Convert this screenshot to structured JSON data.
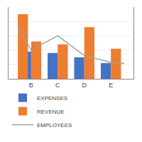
{
  "chart_data": {
    "type": "bar",
    "xlim": [
      -0.85,
      3.85
    ],
    "xticks": [
      {
        "value": 0,
        "label": "B"
      },
      {
        "value": 1,
        "label": "C"
      },
      {
        "value": 2,
        "label": "D"
      },
      {
        "value": 3,
        "label": "E"
      }
    ],
    "ylim": [
      0,
      100
    ],
    "yticks": [
      0,
      20,
      40,
      60,
      80,
      100
    ],
    "y2lim": [
      0,
      130
    ],
    "grid": true,
    "tick_labels": "x",
    "legend": "bottom",
    "series": [
      {
        "name": "EXPENSES",
        "type": "bar",
        "color": "#4472C4",
        "x": [
          0,
          1,
          2,
          3
        ],
        "values": [
          38,
          36,
          30,
          22
        ]
      },
      {
        "name": "REVENUE",
        "type": "bar",
        "color": "#ED7D31",
        "x": [
          -0.5,
          0,
          1,
          2,
          3
        ],
        "values": [
          90,
          52,
          48,
          72,
          42
        ]
      },
      {
        "name": "EMPLOYEES",
        "type": "line",
        "color": "#A0A0A0",
        "axis": "y2",
        "x": [
          -0.5,
          0,
          1,
          2,
          3,
          3.5
        ],
        "values": [
          95,
          52,
          78,
          42,
          30,
          28
        ]
      }
    ]
  }
}
